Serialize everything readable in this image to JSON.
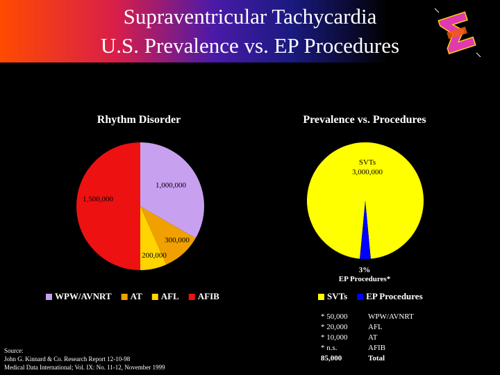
{
  "slide": {
    "title_line1": "Supraventricular Tachycardia",
    "title_line2": "U.S. Prevalence vs. EP Procedures"
  },
  "colors": {
    "wpw_avnrt": "#c8a0f0",
    "at": "#f0a000",
    "afl": "#ffd400",
    "afib": "#ee1111",
    "svts": "#ffff00",
    "ep": "#0000ff",
    "title_gradient_start": "#ff4a00",
    "title_gradient_mid": "#4a1aa8"
  },
  "chart_data": [
    {
      "type": "pie",
      "title": "Rhythm Disorder",
      "categories": [
        "WPW/AVNRT",
        "AT",
        "AFL",
        "AFIB"
      ],
      "values": [
        1000000,
        300000,
        200000,
        1500000
      ],
      "data_labels": [
        "1,000,000",
        "300,000",
        "200,000",
        "1,500,000"
      ],
      "legend": [
        "WPW/AVNRT",
        "AT",
        "AFL",
        "AFIB"
      ],
      "legend_position": "bottom"
    },
    {
      "type": "pie",
      "title": "Prevalence vs. Procedures",
      "categories": [
        "SVTs",
        "EP Procedures"
      ],
      "values": [
        97,
        3
      ],
      "data_labels": [
        {
          "line1": "SVTs",
          "line2": "3,000,000"
        },
        {
          "line1": "3%",
          "line2": "EP Procedures*"
        }
      ],
      "legend": [
        "SVTs",
        "EP Procedures"
      ],
      "legend_position": "bottom"
    }
  ],
  "table": {
    "rows": [
      {
        "value": "* 50,000",
        "label": "WPW/AVNRT"
      },
      {
        "value": "* 20,000",
        "label": "AFL"
      },
      {
        "value": "* 10,000",
        "label": "AT"
      },
      {
        "value": "* n.s.",
        "label": "AFIB"
      },
      {
        "value": "85,000",
        "label": "Total"
      }
    ]
  },
  "source": {
    "line1": "Source:",
    "line2": "John G. Kinnard & Co. Research Report 12-10-98",
    "line3": "Medical Data International; Vol. IX: No. 11-12, November 1999"
  },
  "logo": {
    "icon": "sigma-logo-icon",
    "color": "#e03ab0"
  }
}
